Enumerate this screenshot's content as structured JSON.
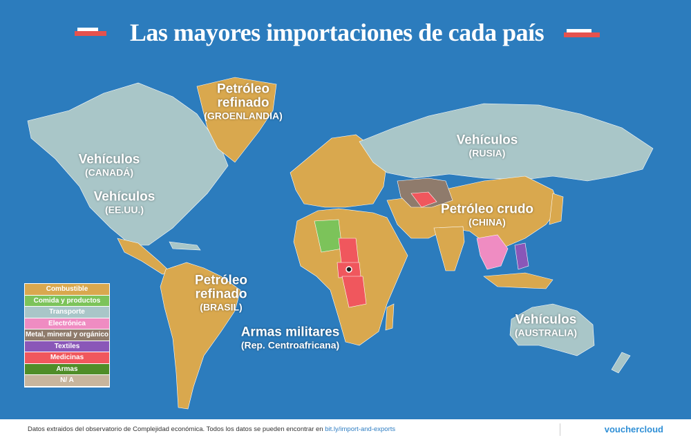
{
  "header": {
    "title": "Las mayores importaciones de cada país"
  },
  "map_labels": [
    {
      "lines": [
        "Petróleo",
        "refinado"
      ],
      "sub": "(GROENLANDIA)"
    },
    {
      "lines": [
        "Vehículos"
      ],
      "sub": "(CANADÁ)"
    },
    {
      "lines": [
        "Vehículos"
      ],
      "sub": "(EE.UU.)"
    },
    {
      "lines": [
        "Vehículos"
      ],
      "sub": "(RUSIA)"
    },
    {
      "lines": [
        "Petróleo crudo"
      ],
      "sub": "(CHINA)"
    },
    {
      "lines": [
        "Petróleo",
        "refinado"
      ],
      "sub": "(BRASIL)"
    },
    {
      "lines": [
        "Armas militares"
      ],
      "sub": "(Rep. Centroafricana)"
    },
    {
      "lines": [
        "Vehículos"
      ],
      "sub": "(AUSTRALIA)"
    }
  ],
  "legend": [
    {
      "label": "Combustible",
      "color": "#d9a84e"
    },
    {
      "label": "Comida y productos",
      "color": "#7cc35a"
    },
    {
      "label": "Transporte",
      "color": "#a9c6c8"
    },
    {
      "label": "Electrónica",
      "color": "#ef8cc2"
    },
    {
      "label": "Metal, mineral y orgánico",
      "color": "#8f7b6c"
    },
    {
      "label": "Textiles",
      "color": "#8a57b8"
    },
    {
      "label": "Medicinas",
      "color": "#f0575d"
    },
    {
      "label": "Armas",
      "color": "#4f8d28"
    },
    {
      "label": "N/ A",
      "color": "#c7b59d"
    }
  ],
  "footer": {
    "text": "Datos extraidos del observatorio de Complejidad económica. Todos los datos se pueden encontrar en",
    "link": "bit.ly/import-and-exports",
    "brand": "vouchercloud"
  }
}
